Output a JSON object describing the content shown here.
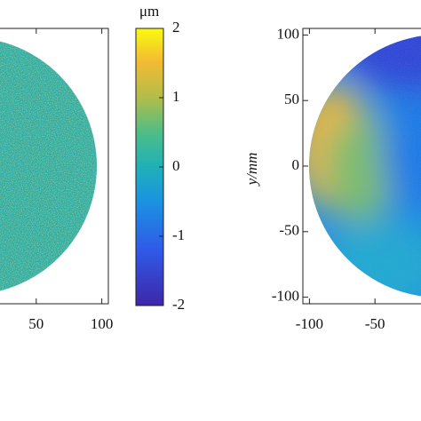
{
  "chart_data": [
    {
      "type": "heatmap",
      "xlim": [
        -105,
        105
      ],
      "ylim": [
        -105,
        105
      ],
      "xticks": [
        50,
        100
      ],
      "colorbar": {
        "label": "μm",
        "lim": [
          -2,
          2
        ],
        "ticks": [
          -2,
          -1,
          0,
          1,
          2
        ]
      }
    },
    {
      "type": "heatmap",
      "ylabel": "y/mm",
      "xlim": [
        -105,
        105
      ],
      "ylim": [
        -105,
        105
      ],
      "xticks": [
        -100,
        -50
      ],
      "yticks": [
        -100,
        -50,
        0,
        50,
        100
      ]
    }
  ]
}
